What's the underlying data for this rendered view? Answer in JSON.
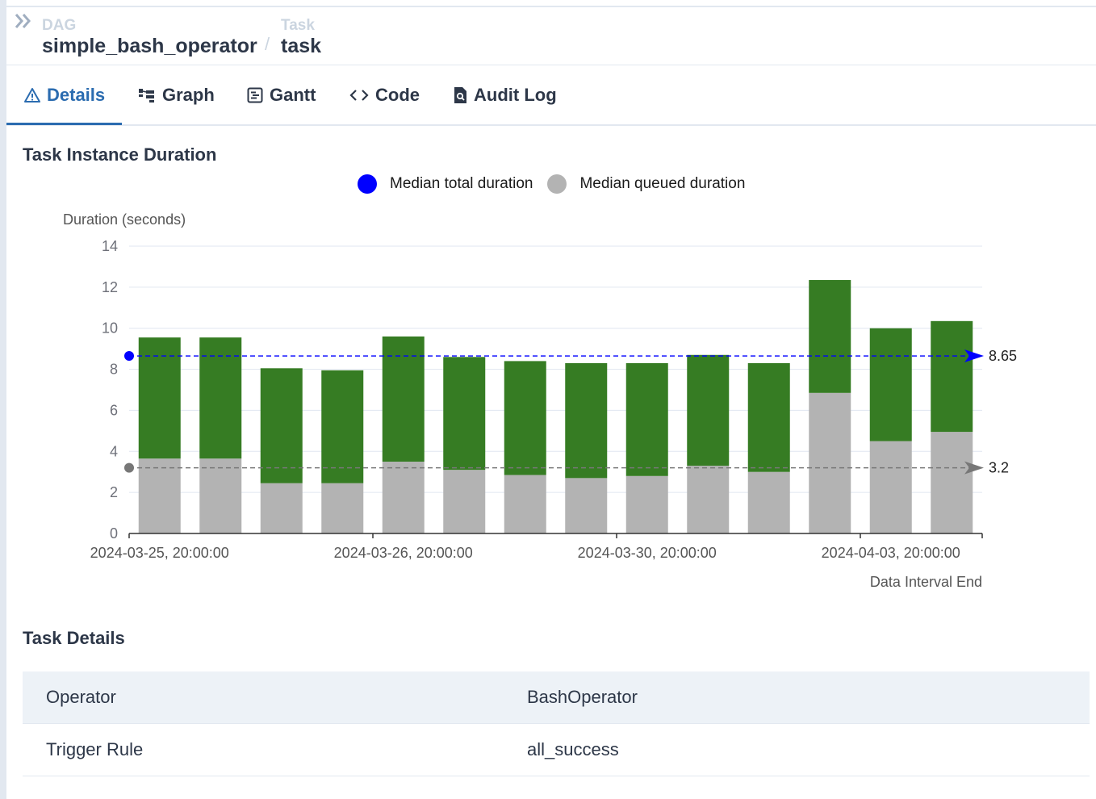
{
  "breadcrumb": {
    "dag_label": "DAG",
    "dag_value": "simple_bash_operator",
    "separator": "/",
    "task_label": "Task",
    "task_value": "task"
  },
  "tabs": [
    {
      "label": "Details",
      "icon": "warning-triangle-icon",
      "active": true
    },
    {
      "label": "Graph",
      "icon": "graph-icon",
      "active": false
    },
    {
      "label": "Gantt",
      "icon": "gantt-icon",
      "active": false
    },
    {
      "label": "Code",
      "icon": "code-icon",
      "active": false
    },
    {
      "label": "Audit Log",
      "icon": "audit-log-icon",
      "active": false
    }
  ],
  "duration_section": {
    "title": "Task Instance Duration"
  },
  "chart_data": {
    "type": "bar",
    "stacked": true,
    "ylabel": "Duration (seconds)",
    "xlabel": "Data Interval End",
    "ylim": [
      0,
      14
    ],
    "yticks": [
      0,
      2,
      4,
      6,
      8,
      10,
      12,
      14
    ],
    "xtick_labels": [
      "2024-03-25, 20:00:00",
      "2024-03-26, 20:00:00",
      "2024-03-30, 20:00:00",
      "2024-04-03, 20:00:00"
    ],
    "xtick_positions": [
      0,
      4,
      8,
      12
    ],
    "legend": [
      "Median total duration",
      "Median queued duration"
    ],
    "legend_position": "top-center",
    "grid": true,
    "series": [
      {
        "name": "queued",
        "color": "#b3b3b3",
        "values": [
          3.65,
          3.65,
          2.45,
          2.45,
          3.5,
          3.1,
          2.85,
          2.7,
          2.8,
          3.3,
          3.0,
          6.85,
          4.5,
          4.95
        ]
      },
      {
        "name": "run",
        "color": "#367c23",
        "values": [
          5.9,
          5.9,
          5.6,
          5.5,
          6.1,
          5.5,
          5.55,
          5.6,
          5.5,
          5.4,
          5.3,
          5.5,
          5.5,
          5.4
        ]
      }
    ],
    "median_lines": [
      {
        "label": "8.65",
        "value": 8.65,
        "color": "#0000ff"
      },
      {
        "label": "3.2",
        "value": 3.2,
        "color": "#777777"
      }
    ],
    "colors": {
      "median_total": "#0000ff",
      "median_queued": "#b3b3b3"
    }
  },
  "task_details": {
    "title": "Task Details",
    "rows": [
      {
        "key": "Operator",
        "value": "BashOperator"
      },
      {
        "key": "Trigger Rule",
        "value": "all_success"
      }
    ]
  }
}
